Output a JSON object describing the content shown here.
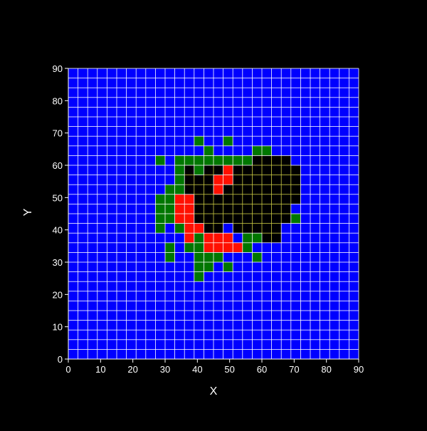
{
  "chart_data": {
    "type": "heatmap",
    "title": "",
    "xlabel": "X",
    "ylabel": "Y",
    "xlim": [
      0,
      90
    ],
    "ylim": [
      0,
      90
    ],
    "xticks": [
      "0",
      "10",
      "20",
      "30",
      "40",
      "50",
      "60",
      "70",
      "80",
      "90"
    ],
    "yticks": [
      "0",
      "10",
      "20",
      "30",
      "40",
      "50",
      "60",
      "70",
      "80",
      "90"
    ],
    "cell_size": 3,
    "grid": true,
    "background_color": "#000000",
    "axis_text_color": "#ffffff",
    "grid_color_outside": "#ffffff",
    "grid_color_inside": "#cccc44",
    "fill_cell_color": "#0000ff",
    "legend_map": {
      "B": "#0000ff",
      "G": "#007700",
      "R": "#ff1000",
      "K": "#000000"
    },
    "cells": {
      "G": [
        [
          40,
          66
        ],
        [
          49,
          66
        ],
        [
          43,
          63
        ],
        [
          58,
          63
        ],
        [
          61,
          63
        ],
        [
          28,
          60
        ],
        [
          34,
          60
        ],
        [
          37,
          60
        ],
        [
          40,
          60
        ],
        [
          43,
          60
        ],
        [
          46,
          60
        ],
        [
          49,
          60
        ],
        [
          52,
          60
        ],
        [
          55,
          60
        ],
        [
          34,
          57
        ],
        [
          40,
          57
        ],
        [
          34,
          54
        ],
        [
          31,
          51
        ],
        [
          34,
          51
        ],
        [
          28,
          48
        ],
        [
          31,
          48
        ],
        [
          28,
          45
        ],
        [
          31,
          45
        ],
        [
          28,
          42
        ],
        [
          31,
          42
        ],
        [
          70,
          42
        ],
        [
          28,
          39
        ],
        [
          34,
          39
        ],
        [
          40,
          36
        ],
        [
          55,
          36
        ],
        [
          58,
          36
        ],
        [
          31,
          33
        ],
        [
          37,
          33
        ],
        [
          40,
          33
        ],
        [
          43,
          33
        ],
        [
          46,
          33
        ],
        [
          49,
          33
        ],
        [
          52,
          33
        ],
        [
          55,
          33
        ],
        [
          31,
          30
        ],
        [
          40,
          30
        ],
        [
          43,
          30
        ],
        [
          46,
          30
        ],
        [
          58,
          30
        ],
        [
          40,
          27
        ],
        [
          43,
          27
        ],
        [
          49,
          27
        ],
        [
          40,
          24
        ]
      ],
      "R": [
        [
          49,
          57
        ],
        [
          46,
          54
        ],
        [
          49,
          54
        ],
        [
          46,
          51
        ],
        [
          34,
          48
        ],
        [
          37,
          48
        ],
        [
          34,
          45
        ],
        [
          37,
          45
        ],
        [
          34,
          42
        ],
        [
          37,
          42
        ],
        [
          37,
          39
        ],
        [
          40,
          39
        ],
        [
          37,
          36
        ],
        [
          43,
          36
        ],
        [
          46,
          36
        ],
        [
          49,
          36
        ],
        [
          43,
          33
        ],
        [
          46,
          33
        ],
        [
          49,
          33
        ],
        [
          52,
          33
        ]
      ],
      "K": [
        [
          58,
          60
        ],
        [
          61,
          60
        ],
        [
          64,
          60
        ],
        [
          67,
          60
        ],
        [
          37,
          57
        ],
        [
          43,
          57
        ],
        [
          46,
          57
        ],
        [
          52,
          57
        ],
        [
          55,
          57
        ],
        [
          58,
          57
        ],
        [
          61,
          57
        ],
        [
          64,
          57
        ],
        [
          67,
          57
        ],
        [
          70,
          57
        ],
        [
          37,
          54
        ],
        [
          40,
          54
        ],
        [
          43,
          54
        ],
        [
          52,
          54
        ],
        [
          55,
          54
        ],
        [
          58,
          54
        ],
        [
          61,
          54
        ],
        [
          64,
          54
        ],
        [
          67,
          54
        ],
        [
          70,
          54
        ],
        [
          37,
          51
        ],
        [
          40,
          51
        ],
        [
          43,
          51
        ],
        [
          49,
          51
        ],
        [
          52,
          51
        ],
        [
          55,
          51
        ],
        [
          58,
          51
        ],
        [
          61,
          51
        ],
        [
          64,
          51
        ],
        [
          67,
          51
        ],
        [
          70,
          51
        ],
        [
          40,
          48
        ],
        [
          43,
          48
        ],
        [
          46,
          48
        ],
        [
          49,
          48
        ],
        [
          52,
          48
        ],
        [
          55,
          48
        ],
        [
          58,
          48
        ],
        [
          61,
          48
        ],
        [
          64,
          48
        ],
        [
          67,
          48
        ],
        [
          70,
          48
        ],
        [
          40,
          45
        ],
        [
          43,
          45
        ],
        [
          46,
          45
        ],
        [
          49,
          45
        ],
        [
          52,
          45
        ],
        [
          55,
          45
        ],
        [
          58,
          45
        ],
        [
          61,
          45
        ],
        [
          64,
          45
        ],
        [
          67,
          45
        ],
        [
          40,
          42
        ],
        [
          43,
          42
        ],
        [
          46,
          42
        ],
        [
          49,
          42
        ],
        [
          52,
          42
        ],
        [
          55,
          42
        ],
        [
          58,
          42
        ],
        [
          61,
          42
        ],
        [
          64,
          42
        ],
        [
          67,
          42
        ],
        [
          43,
          39
        ],
        [
          46,
          39
        ],
        [
          52,
          39
        ],
        [
          55,
          39
        ],
        [
          58,
          39
        ],
        [
          61,
          39
        ],
        [
          64,
          39
        ],
        [
          61,
          36
        ],
        [
          64,
          36
        ]
      ]
    }
  }
}
